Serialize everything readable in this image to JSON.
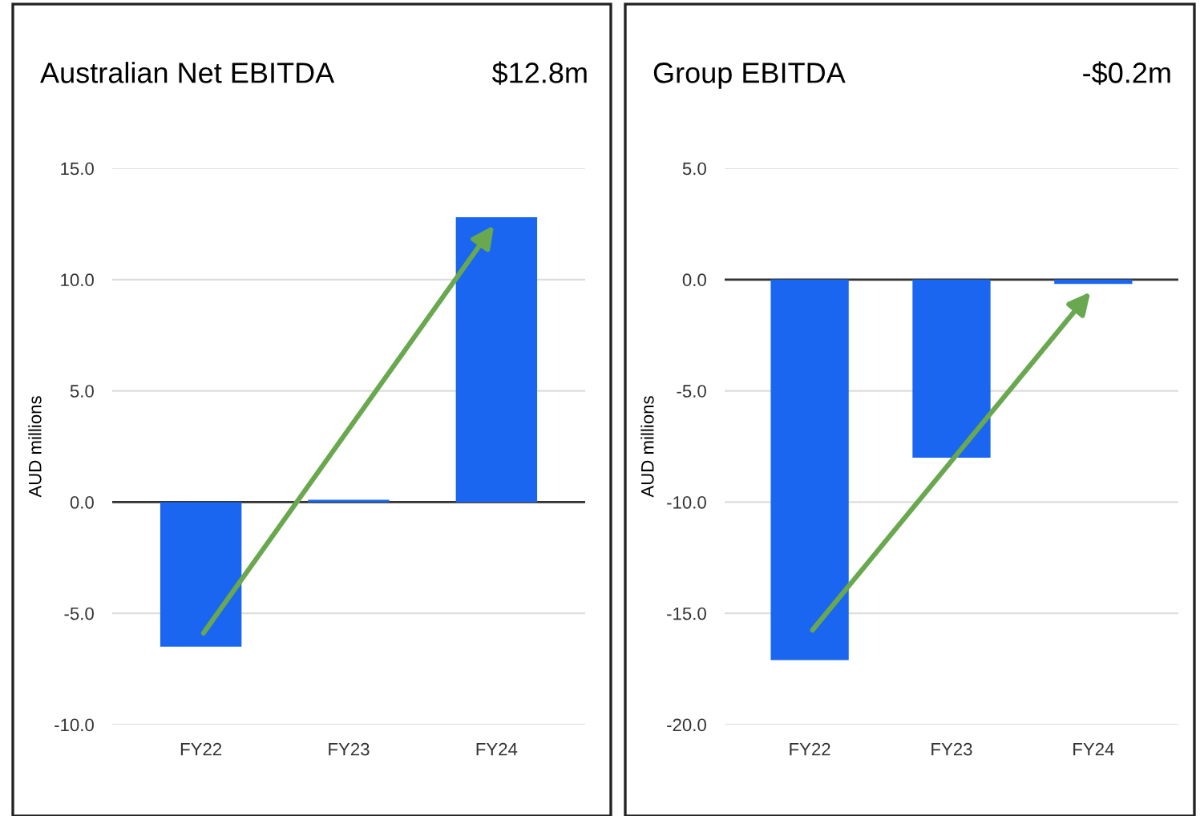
{
  "chart_data": [
    {
      "type": "bar",
      "title": "Australian Net EBITDA",
      "annotations": [
        "$12.8m"
      ],
      "ylabel": "AUD millions",
      "categories": [
        "FY22",
        "FY23",
        "FY24"
      ],
      "series": [
        {
          "color": "#1a66f0",
          "values": [
            -6.5,
            0.1,
            12.8
          ]
        }
      ],
      "ylim": [
        -10,
        15
      ],
      "yticks": [
        {
          "value": -10,
          "label": "-10.0"
        },
        {
          "value": -5,
          "label": "-5.0"
        },
        {
          "value": 0,
          "label": "0.0"
        },
        {
          "value": 5,
          "label": "5.0"
        },
        {
          "value": 10,
          "label": "10.0"
        },
        {
          "value": 15,
          "label": "15.0"
        }
      ],
      "grid": "y",
      "legend": false,
      "ref_lines": [
        {
          "axis": "y",
          "value": 0,
          "color": "#333333"
        }
      ]
    },
    {
      "type": "bar",
      "title": "Group EBITDA",
      "annotations": [
        "-$0.2m"
      ],
      "ylabel": "AUD millions",
      "categories": [
        "FY22",
        "FY23",
        "FY24"
      ],
      "series": [
        {
          "color": "#1a66f0",
          "values": [
            -17.1,
            -8.0,
            -0.2
          ]
        }
      ],
      "ylim": [
        -20,
        5
      ],
      "yticks": [
        {
          "value": -20,
          "label": "-20.0"
        },
        {
          "value": -15,
          "label": "-15.0"
        },
        {
          "value": -10,
          "label": "-10.0"
        },
        {
          "value": -5,
          "label": "-5.0"
        },
        {
          "value": 0,
          "label": "0.0"
        },
        {
          "value": 5,
          "label": "5.0"
        }
      ],
      "grid": "y",
      "legend": false,
      "ref_lines": [
        {
          "axis": "y",
          "value": 0,
          "color": "#333333"
        }
      ]
    }
  ]
}
